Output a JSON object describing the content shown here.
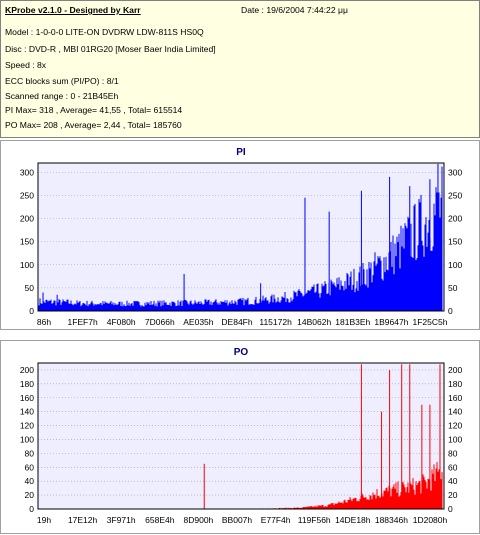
{
  "header": {
    "title": "KProbe v2.1.0 - Designed by Karr",
    "date": "Date : 19/6/2004 7:44:22 μμ",
    "model": "Model : 1-0-0-0 LITE-ON DVDRW LDW-811S   HS0Q",
    "disc": "Disc : DVD-R , MBI 01RG20   [Moser Baer India Limited]",
    "speed": "Speed : 8x",
    "ecc": "ECC blocks sum (PI/PO) : 8/1",
    "range": "Scanned range : 0 - 21B45Eh",
    "pi_summary": "PI Max= 318 , Average= 41,55 , Total= 615514",
    "po_summary": "PO Max= 208 , Average= 2,44 , Total= 185760"
  },
  "colors": {
    "pi": "#0000ff",
    "po": "#ff0000",
    "plot_bg": "#eeeeff",
    "grid": "#9999cc",
    "panel_bg": "#ffffff",
    "info_bg": "#ffffe1"
  },
  "chart_data": [
    {
      "type": "bar",
      "title": "PI",
      "ylim": [
        0,
        320
      ],
      "yticks": [
        0,
        50,
        100,
        150,
        200,
        250,
        300
      ],
      "xlabels": [
        "86h",
        "1FEF7h",
        "4F080h",
        "7D066h",
        "AE035h",
        "DE84Fh",
        "115172h",
        "14B062h",
        "181B3Eh",
        "1B9647h",
        "1F25C5h"
      ],
      "envelope": [
        [
          0,
          22
        ],
        [
          0.07,
          20
        ],
        [
          0.1,
          18
        ],
        [
          0.2,
          17
        ],
        [
          0.3,
          18
        ],
        [
          0.4,
          19
        ],
        [
          0.5,
          22
        ],
        [
          0.55,
          25
        ],
        [
          0.6,
          30
        ],
        [
          0.65,
          38
        ],
        [
          0.7,
          48
        ],
        [
          0.75,
          62
        ],
        [
          0.8,
          80
        ],
        [
          0.85,
          110
        ],
        [
          0.9,
          150
        ],
        [
          0.95,
          200
        ],
        [
          1.0,
          245
        ]
      ],
      "spikes": [
        [
          0.01,
          40
        ],
        [
          0.045,
          35
        ],
        [
          0.36,
          80
        ],
        [
          0.55,
          60
        ],
        [
          0.66,
          245
        ],
        [
          0.72,
          215
        ],
        [
          0.8,
          260
        ],
        [
          0.87,
          290
        ],
        [
          0.92,
          270
        ],
        [
          0.97,
          285
        ],
        [
          0.99,
          318
        ]
      ]
    },
    {
      "type": "bar",
      "title": "PO",
      "ylim": [
        0,
        210
      ],
      "yticks": [
        0,
        20,
        40,
        60,
        80,
        100,
        120,
        140,
        160,
        180,
        200
      ],
      "xlabels": [
        "19h",
        "17E12h",
        "3F971h",
        "658E4h",
        "8D900h",
        "BB007h",
        "E77F4h",
        "119F56h",
        "14DE18h",
        "188346h",
        "1D2080h"
      ],
      "envelope": [
        [
          0,
          0
        ],
        [
          0.5,
          0
        ],
        [
          0.65,
          2
        ],
        [
          0.72,
          6
        ],
        [
          0.78,
          15
        ],
        [
          0.82,
          22
        ],
        [
          0.87,
          28
        ],
        [
          0.92,
          34
        ],
        [
          0.96,
          40
        ],
        [
          1.0,
          60
        ]
      ],
      "spikes": [
        [
          0.41,
          65
        ],
        [
          0.8,
          208
        ],
        [
          0.85,
          140
        ],
        [
          0.87,
          200
        ],
        [
          0.9,
          208
        ],
        [
          0.92,
          208
        ],
        [
          0.95,
          150
        ],
        [
          0.97,
          150
        ],
        [
          0.995,
          208
        ]
      ]
    }
  ]
}
